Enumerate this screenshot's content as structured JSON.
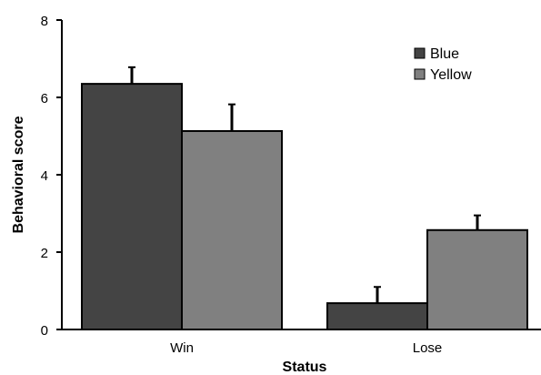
{
  "chart_data": {
    "type": "bar",
    "categories": [
      "Win",
      "Lose"
    ],
    "series": [
      {
        "name": "Blue",
        "values": [
          6.35,
          0.68
        ],
        "errors": [
          0.43,
          0.42
        ],
        "color": "#444444"
      },
      {
        "name": "Yellow",
        "values": [
          5.13,
          2.57
        ],
        "errors": [
          0.69,
          0.38
        ],
        "color": "#808080"
      }
    ],
    "title": "",
    "xlabel": "Status",
    "ylabel": "Behavioral score",
    "ylim": [
      0,
      8
    ],
    "yticks": [
      0,
      2,
      4,
      6,
      8
    ],
    "grid": false,
    "legend_position": "top-right"
  }
}
